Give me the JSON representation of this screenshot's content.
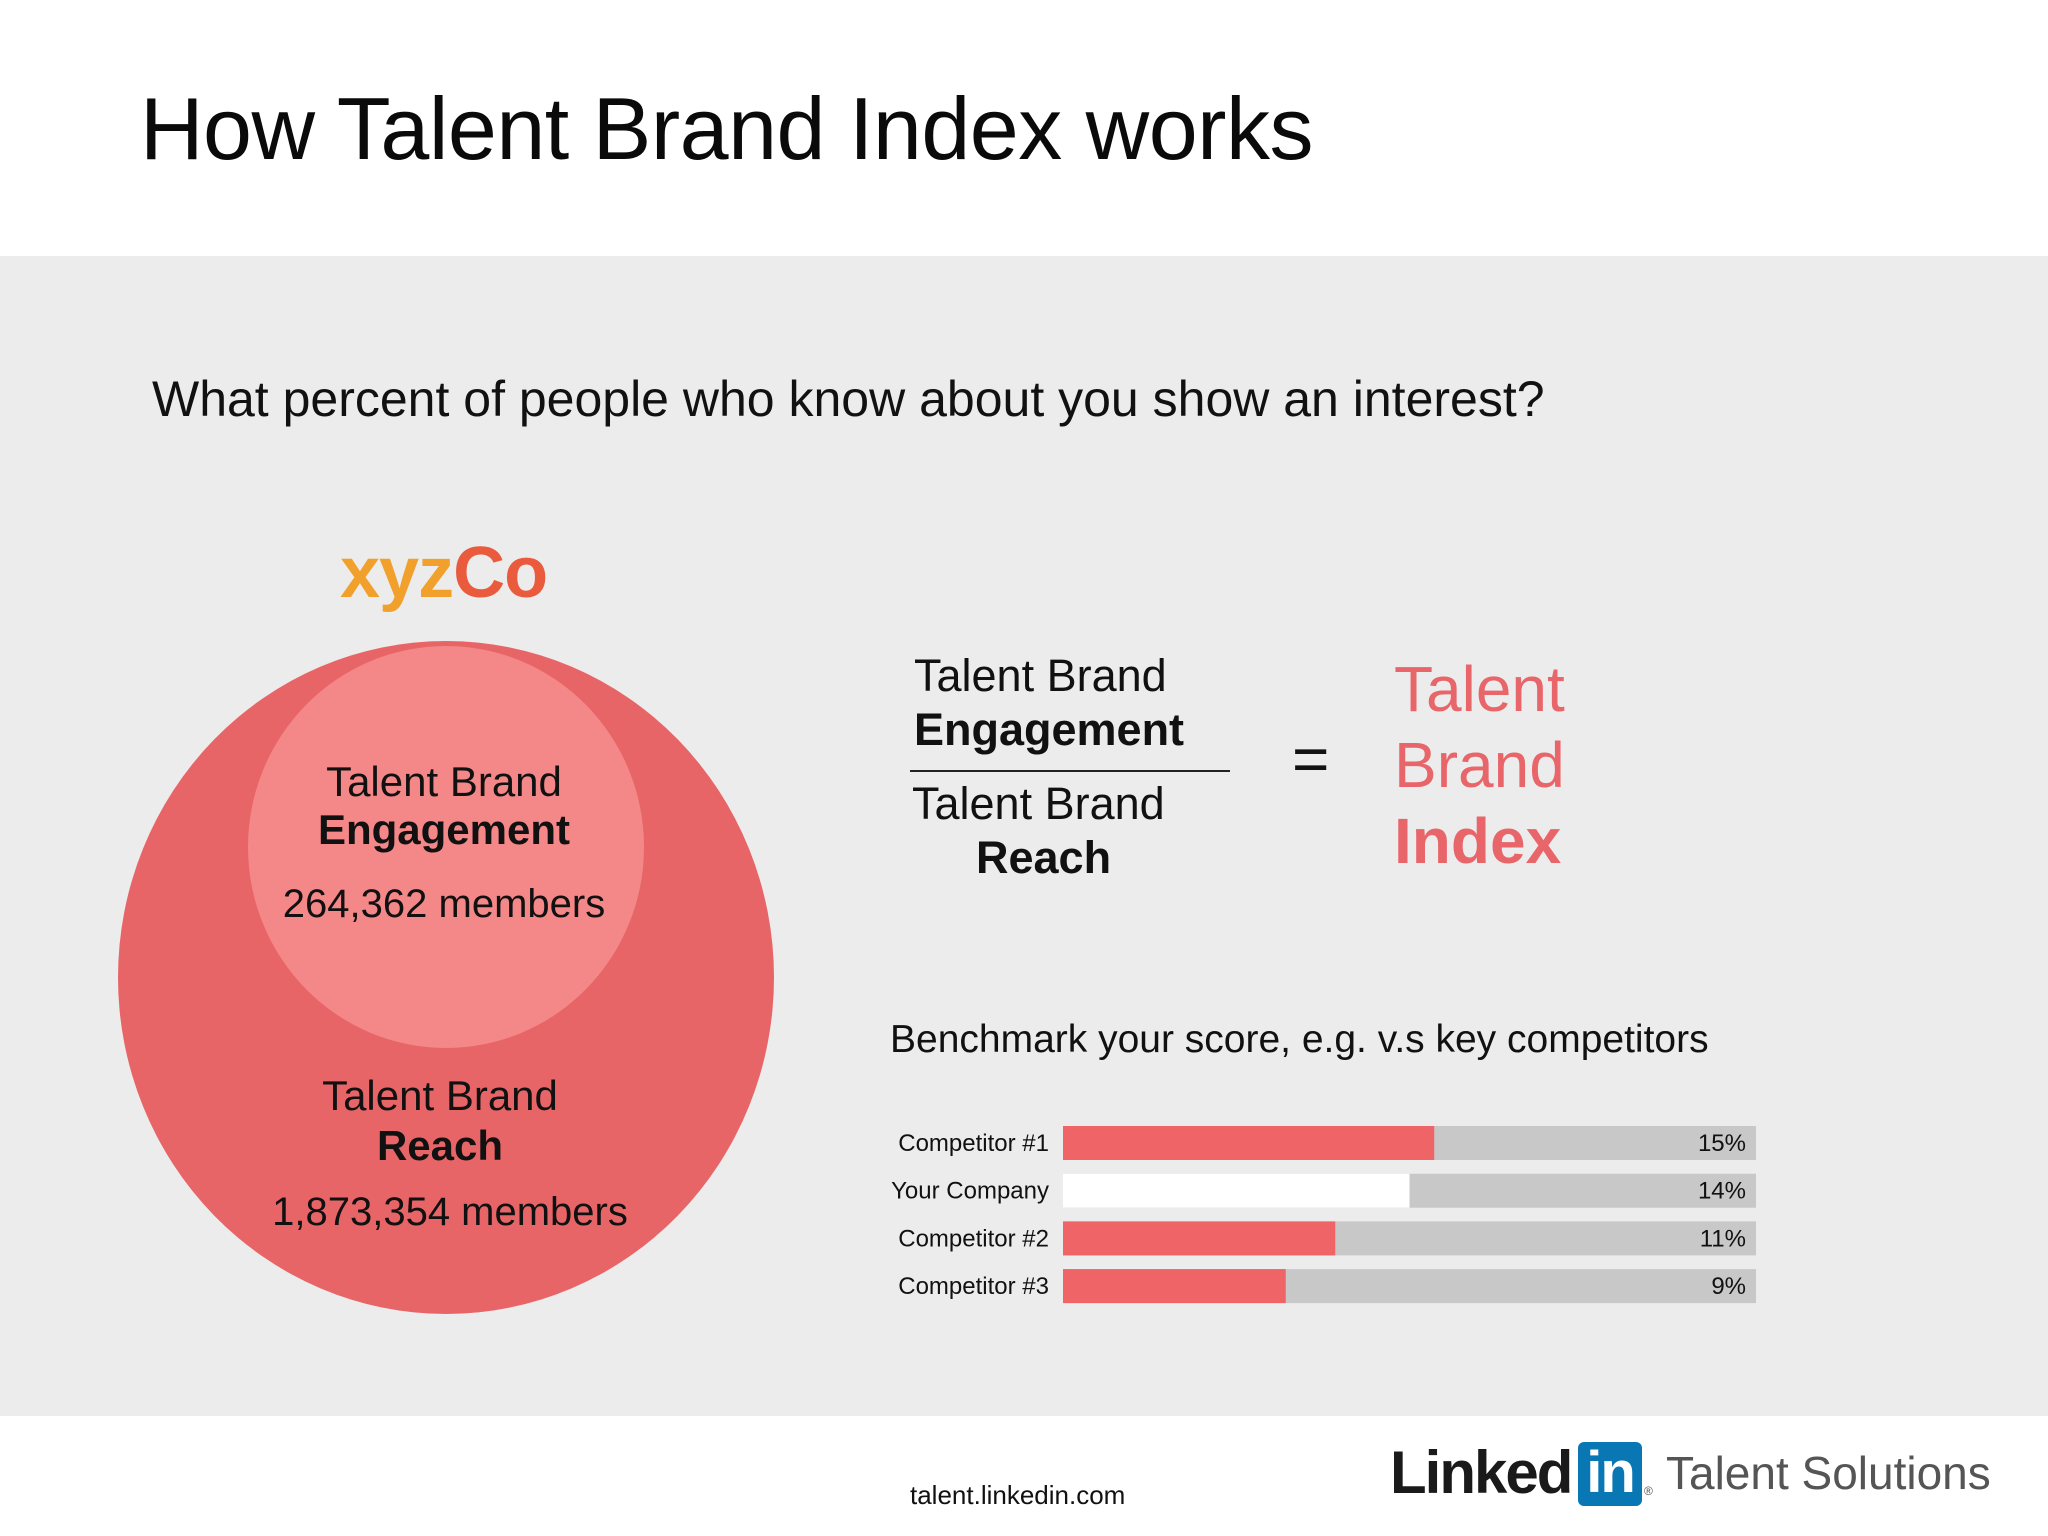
{
  "slide": {
    "title": "How Talent Brand Index works",
    "subtitle": "What percent of people who know about you show an interest?"
  },
  "brand": {
    "name_part1": "xyz",
    "name_part2": "Co",
    "color_part1": "#f0a02b",
    "color_part2": "#ea5a3c"
  },
  "venn": {
    "engagement": {
      "line1": "Talent Brand",
      "line2": "Engagement",
      "count": "264,362 members"
    },
    "reach": {
      "line1": "Talent Brand",
      "line2": "Reach",
      "count": "1,873,354 members"
    },
    "colors": {
      "outer": "#e86567",
      "inner": "#f48787"
    }
  },
  "formula": {
    "numerator_line1": "Talent Brand",
    "numerator_line2": "Engagement",
    "denominator_line1": "Talent Brand",
    "denominator_line2": "Reach",
    "equals": "=",
    "result_line1": "Talent",
    "result_line2": "Brand",
    "result_line3": "Index",
    "result_color": "#e8656a"
  },
  "benchmark": {
    "title": "Benchmark your score, e.g. v.s key competitors"
  },
  "chart_data": {
    "type": "bar",
    "orientation": "horizontal",
    "categories": [
      "Competitor #1",
      "Your Company",
      "Competitor #2",
      "Competitor #3"
    ],
    "values": [
      15,
      14,
      11,
      9
    ],
    "value_labels": [
      "15%",
      "14%",
      "11%",
      "9%"
    ],
    "unit": "%",
    "xlim": [
      0,
      28
    ],
    "bar_colors": [
      "#ef6466",
      "#ffffff",
      "#ef6466",
      "#ef6466"
    ],
    "track_color": "#c8c8c8",
    "grid": false
  },
  "footer": {
    "url": "talent.linkedin.com",
    "logo_linked": "Linked",
    "logo_in": "in",
    "logo_reg": "®",
    "logo_solutions": "Talent Solutions"
  }
}
